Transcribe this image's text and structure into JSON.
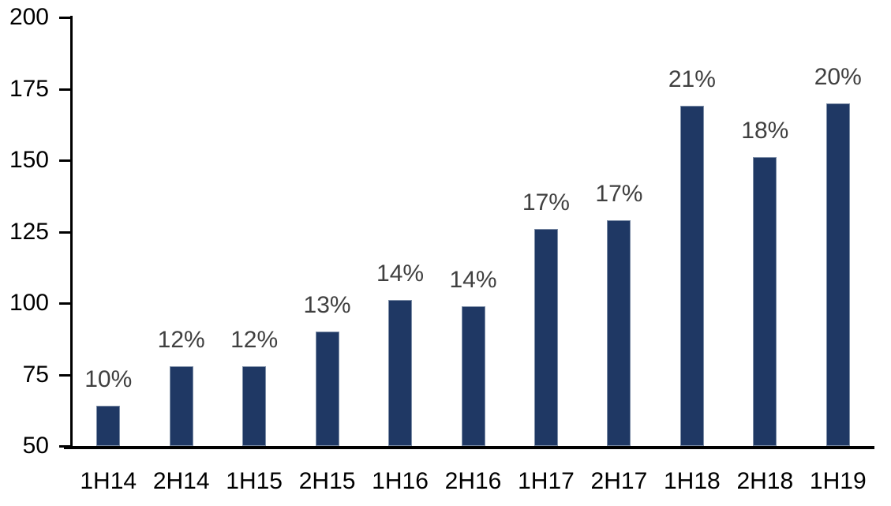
{
  "chart_data": {
    "type": "bar",
    "title": "",
    "xlabel": "",
    "ylabel": "",
    "categories": [
      "1H14",
      "2H14",
      "1H15",
      "2H15",
      "1H16",
      "2H16",
      "1H17",
      "2H17",
      "1H18",
      "2H18",
      "1H19"
    ],
    "values": [
      64,
      78,
      78,
      90,
      101,
      99,
      126,
      129,
      169,
      151,
      170
    ],
    "data_labels": [
      "10%",
      "12%",
      "12%",
      "13%",
      "14%",
      "14%",
      "17%",
      "17%",
      "21%",
      "18%",
      "20%"
    ],
    "ylim": [
      50,
      200
    ],
    "yticks": [
      50,
      75,
      100,
      125,
      150,
      175,
      200
    ],
    "grid": false,
    "legend_position": "none",
    "colors": {
      "bar_fill": "#1F3864",
      "bar_border": "#7C8DA6",
      "data_label": "#404040",
      "axis": "#000000",
      "background": "#FFFFFF"
    }
  }
}
